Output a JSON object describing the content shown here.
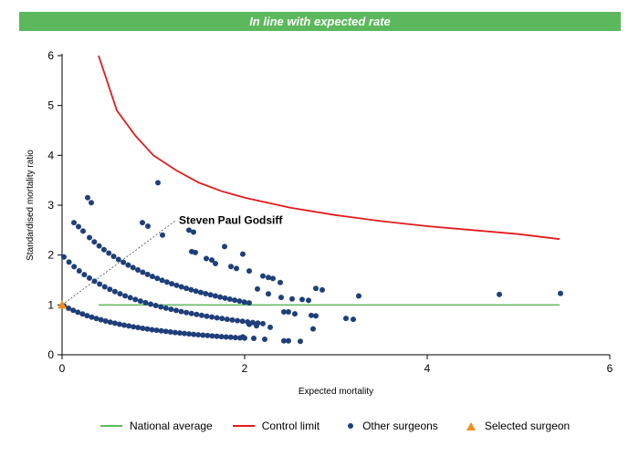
{
  "banner": {
    "text": "In line with expected rate"
  },
  "colors": {
    "banner_bg": "#5cb85c",
    "national": "#5cb85c",
    "control": "#e31a1c",
    "others": "#1f3f7a",
    "selected": "#f28e1c"
  },
  "chart_data": {
    "type": "scatter",
    "xlabel": "Expected mortality",
    "ylabel": "Standardised mortality ratio",
    "xlim": [
      0,
      6
    ],
    "ylim": [
      0,
      6
    ],
    "xticks": [
      0,
      2,
      4,
      6
    ],
    "yticks": [
      0,
      1,
      2,
      3,
      4,
      5,
      6
    ],
    "legend_position": "bottom",
    "annotation": {
      "text": "Steven Paul Godsiff",
      "x": 1.25,
      "y": 2.7,
      "points_to": [
        0,
        1
      ]
    },
    "national_average": {
      "name": "National average",
      "y": 1,
      "x_from": 0.4,
      "x_to": 5.45
    },
    "control_limit": {
      "name": "Control limit",
      "points": [
        [
          0.4,
          6.0
        ],
        [
          0.6,
          4.9
        ],
        [
          0.8,
          4.4
        ],
        [
          1.0,
          4.0
        ],
        [
          1.25,
          3.7
        ],
        [
          1.5,
          3.45
        ],
        [
          1.75,
          3.28
        ],
        [
          2.0,
          3.15
        ],
        [
          2.5,
          2.95
        ],
        [
          3.0,
          2.8
        ],
        [
          3.5,
          2.68
        ],
        [
          4.0,
          2.58
        ],
        [
          4.5,
          2.5
        ],
        [
          5.0,
          2.42
        ],
        [
          5.45,
          2.32
        ]
      ]
    },
    "selected_surgeon": {
      "name": "Selected surgeon",
      "x": 0,
      "y": 1
    },
    "other_surgeons": {
      "name": "Other surgeons",
      "extra_points": [
        [
          0.28,
          3.15
        ],
        [
          0.32,
          3.05
        ],
        [
          0.13,
          2.65
        ],
        [
          0.18,
          2.57
        ],
        [
          0.23,
          2.48
        ],
        [
          1.05,
          3.45
        ],
        [
          0.88,
          2.65
        ],
        [
          0.94,
          2.58
        ],
        [
          1.1,
          2.4
        ],
        [
          1.39,
          2.5
        ],
        [
          1.44,
          2.46
        ],
        [
          1.42,
          2.07
        ],
        [
          1.46,
          2.05
        ],
        [
          1.58,
          1.93
        ],
        [
          1.64,
          1.9
        ],
        [
          1.68,
          1.83
        ],
        [
          1.78,
          2.17
        ],
        [
          1.85,
          1.77
        ],
        [
          1.91,
          1.73
        ],
        [
          1.98,
          2.02
        ],
        [
          2.05,
          1.68
        ],
        [
          2.2,
          1.58
        ],
        [
          2.26,
          1.55
        ],
        [
          2.31,
          1.53
        ],
        [
          2.14,
          1.32
        ],
        [
          2.39,
          1.45
        ],
        [
          2.26,
          1.22
        ],
        [
          2.4,
          1.15
        ],
        [
          2.52,
          1.12
        ],
        [
          2.63,
          1.11
        ],
        [
          2.7,
          1.09
        ],
        [
          2.78,
          1.33
        ],
        [
          2.85,
          1.3
        ],
        [
          3.25,
          1.18
        ],
        [
          2.73,
          0.79
        ],
        [
          2.78,
          0.78
        ],
        [
          2.75,
          0.52
        ],
        [
          2.43,
          0.86
        ],
        [
          2.48,
          0.86
        ],
        [
          2.55,
          0.82
        ],
        [
          2.28,
          0.55
        ],
        [
          2.43,
          0.28
        ],
        [
          2.22,
          0.31
        ],
        [
          2.61,
          0.27
        ],
        [
          3.11,
          0.73
        ],
        [
          3.19,
          0.71
        ],
        [
          4.79,
          1.21
        ],
        [
          5.46,
          1.23
        ],
        [
          2.48,
          0.28
        ],
        [
          2.1,
          0.33
        ],
        [
          1.98,
          0.36
        ],
        [
          2.05,
          0.61
        ],
        [
          2.13,
          0.58
        ]
      ],
      "curves": [
        {
          "k": 1,
          "x_start": 0.02,
          "x_end": 2.0,
          "count": 40
        },
        {
          "k": 2,
          "x_start": 0.02,
          "x_end": 2.2,
          "count": 40
        },
        {
          "k": 3,
          "x_start": 0.3,
          "x_end": 2.05,
          "count": 34
        }
      ]
    }
  },
  "legend": {
    "national": "National average",
    "control": "Control limit",
    "others": "Other surgeons",
    "selected": "Selected surgeon"
  }
}
